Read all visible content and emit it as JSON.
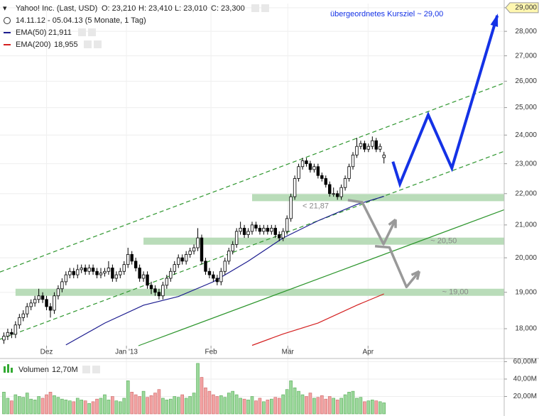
{
  "chart_data": {
    "type": "candlestick",
    "header": {
      "symbol": "Yahoo! Inc. (Last, USD)",
      "open": "O: 23,210",
      "high": "H: 23,410",
      "low": "L: 23,010",
      "close": "C: 23,300",
      "range": "14.11.12 - 05.04.13 (5 Monate, 1 Tag)"
    },
    "annotation": "übergeordnetes Kursziel  ~ 29,00",
    "xlim": [
      -1,
      129
    ],
    "xticks": [
      {
        "value": 11,
        "label": "Dez"
      },
      {
        "value": 31.6,
        "label": "Jan '13"
      },
      {
        "value": 53.4,
        "label": "Feb"
      },
      {
        "value": 73.2,
        "label": "Mär"
      },
      {
        "value": 93.9,
        "label": "Apr"
      }
    ],
    "ylim": [
      17.55,
      29.18
    ],
    "log_scale": true,
    "grid": true,
    "yticks": [
      {
        "value": 18,
        "label": "18,000"
      },
      {
        "value": 19,
        "label": "19,000"
      },
      {
        "value": 20,
        "label": "20,000"
      },
      {
        "value": 21,
        "label": "21,000"
      },
      {
        "value": 22,
        "label": "22,000"
      },
      {
        "value": 23,
        "label": "23,000"
      },
      {
        "value": 24,
        "label": "24,000"
      },
      {
        "value": 25,
        "label": "25,000"
      },
      {
        "value": 26,
        "label": "26,000"
      },
      {
        "value": 27,
        "label": "27,000"
      },
      {
        "value": 28,
        "label": "28,000"
      },
      {
        "value": 29,
        "label": "29,000"
      }
    ],
    "highlight_tick": 11,
    "ohlc": [
      [
        17.7,
        17.9,
        17.6,
        17.8
      ],
      [
        17.8,
        18.0,
        17.7,
        17.9
      ],
      [
        17.9,
        18.0,
        17.75,
        17.85
      ],
      [
        17.85,
        18.2,
        17.75,
        18.1
      ],
      [
        18.1,
        18.4,
        18.0,
        18.3
      ],
      [
        18.3,
        18.5,
        18.2,
        18.4
      ],
      [
        18.4,
        18.7,
        18.3,
        18.6
      ],
      [
        18.6,
        18.8,
        18.5,
        18.7
      ],
      [
        18.7,
        18.9,
        18.6,
        18.8
      ],
      [
        18.8,
        19.1,
        18.7,
        18.9
      ],
      [
        18.9,
        19.0,
        18.7,
        18.8
      ],
      [
        18.8,
        18.9,
        18.5,
        18.6
      ],
      [
        18.6,
        18.7,
        18.3,
        18.5
      ],
      [
        18.5,
        19.0,
        18.4,
        18.9
      ],
      [
        18.9,
        19.2,
        18.8,
        19.1
      ],
      [
        19.1,
        19.4,
        19.0,
        19.3
      ],
      [
        19.3,
        19.6,
        19.2,
        19.5
      ],
      [
        19.5,
        19.7,
        19.4,
        19.6
      ],
      [
        19.6,
        19.7,
        19.4,
        19.5
      ],
      [
        19.5,
        19.8,
        19.4,
        19.65
      ],
      [
        19.65,
        19.8,
        19.55,
        19.7
      ],
      [
        19.7,
        19.8,
        19.5,
        19.6
      ],
      [
        19.6,
        19.8,
        19.5,
        19.7
      ],
      [
        19.7,
        19.8,
        19.5,
        19.6
      ],
      [
        19.6,
        19.7,
        19.4,
        19.5
      ],
      [
        19.5,
        19.7,
        19.4,
        19.55
      ],
      [
        19.55,
        19.7,
        19.45,
        19.6
      ],
      [
        19.6,
        19.9,
        19.5,
        19.7
      ],
      [
        19.7,
        19.8,
        19.3,
        19.4
      ],
      [
        19.4,
        19.6,
        19.3,
        19.5
      ],
      [
        19.5,
        19.7,
        19.4,
        19.6
      ],
      [
        19.6,
        19.9,
        19.5,
        19.8
      ],
      [
        19.8,
        20.3,
        19.7,
        20.1
      ],
      [
        20.1,
        20.2,
        19.8,
        19.9
      ],
      [
        19.9,
        20.0,
        19.6,
        19.7
      ],
      [
        19.7,
        19.8,
        19.3,
        19.4
      ],
      [
        19.4,
        19.6,
        19.3,
        19.5
      ],
      [
        19.5,
        19.6,
        19.1,
        19.2
      ],
      [
        19.2,
        19.3,
        18.95,
        19.1
      ],
      [
        19.1,
        19.2,
        18.9,
        19.0
      ],
      [
        19.0,
        19.1,
        18.8,
        18.9
      ],
      [
        18.9,
        19.3,
        18.8,
        19.2
      ],
      [
        19.2,
        19.5,
        19.1,
        19.4
      ],
      [
        19.4,
        19.7,
        19.3,
        19.6
      ],
      [
        19.6,
        19.9,
        19.5,
        19.8
      ],
      [
        19.8,
        20.1,
        19.7,
        20.0
      ],
      [
        20.0,
        20.1,
        19.8,
        19.9
      ],
      [
        19.9,
        20.2,
        19.8,
        20.1
      ],
      [
        20.1,
        20.3,
        20.0,
        20.2
      ],
      [
        20.2,
        20.4,
        20.1,
        20.3
      ],
      [
        20.3,
        20.9,
        20.2,
        20.6
      ],
      [
        20.6,
        20.7,
        19.8,
        19.9
      ],
      [
        19.9,
        20.0,
        19.5,
        19.6
      ],
      [
        19.6,
        19.7,
        19.4,
        19.5
      ],
      [
        19.5,
        19.6,
        19.3,
        19.4
      ],
      [
        19.4,
        19.5,
        19.2,
        19.3
      ],
      [
        19.3,
        19.7,
        19.2,
        19.6
      ],
      [
        19.6,
        20.0,
        19.5,
        19.9
      ],
      [
        19.9,
        20.3,
        19.8,
        20.2
      ],
      [
        20.2,
        20.5,
        20.1,
        20.4
      ],
      [
        20.4,
        20.9,
        20.3,
        20.8
      ],
      [
        20.8,
        21.1,
        20.7,
        20.9
      ],
      [
        20.9,
        21.0,
        20.6,
        20.7
      ],
      [
        20.7,
        20.9,
        20.6,
        20.8
      ],
      [
        20.8,
        21.1,
        20.7,
        21.0
      ],
      [
        21.0,
        21.1,
        20.8,
        20.9
      ],
      [
        20.9,
        21.0,
        20.7,
        20.8
      ],
      [
        20.8,
        21.0,
        20.7,
        20.9
      ],
      [
        20.9,
        21.0,
        20.7,
        20.8
      ],
      [
        20.8,
        21.0,
        20.7,
        20.9
      ],
      [
        20.9,
        21.0,
        20.6,
        20.7
      ],
      [
        20.7,
        20.8,
        20.5,
        20.6
      ],
      [
        20.6,
        20.9,
        20.5,
        20.8
      ],
      [
        20.8,
        21.3,
        20.7,
        21.2
      ],
      [
        21.2,
        22.0,
        21.1,
        21.9
      ],
      [
        21.9,
        22.6,
        21.8,
        22.5
      ],
      [
        22.5,
        23.0,
        22.4,
        22.9
      ],
      [
        22.9,
        23.2,
        22.8,
        23.1
      ],
      [
        23.1,
        23.2,
        22.9,
        23.0
      ],
      [
        23.0,
        23.1,
        22.7,
        22.8
      ],
      [
        22.8,
        23.0,
        22.7,
        22.9
      ],
      [
        22.9,
        23.0,
        22.5,
        22.6
      ],
      [
        22.6,
        22.7,
        22.4,
        22.5
      ],
      [
        22.5,
        22.6,
        22.2,
        22.3
      ],
      [
        22.3,
        22.4,
        21.9,
        22.0
      ],
      [
        22.0,
        22.2,
        21.9,
        22.0
      ],
      [
        22.0,
        22.1,
        21.8,
        21.9
      ],
      [
        21.9,
        22.3,
        21.8,
        22.2
      ],
      [
        22.2,
        22.6,
        22.1,
        22.5
      ],
      [
        22.5,
        23.0,
        22.4,
        22.9
      ],
      [
        22.9,
        23.4,
        22.8,
        23.3
      ],
      [
        23.3,
        23.9,
        23.2,
        23.6
      ],
      [
        23.6,
        23.8,
        23.5,
        23.7
      ],
      [
        23.7,
        23.8,
        23.4,
        23.5
      ],
      [
        23.5,
        23.7,
        23.4,
        23.6
      ],
      [
        23.6,
        23.95,
        23.5,
        23.8
      ],
      [
        23.8,
        23.9,
        23.4,
        23.5
      ],
      [
        23.5,
        23.7,
        23.4,
        23.6
      ],
      [
        23.21,
        23.41,
        23.01,
        23.3
      ]
    ],
    "series": [
      {
        "name": "EMA(50)",
        "last_label": "21,911",
        "color": "#1c1c8f",
        "x": [
          16,
          26,
          36,
          45,
          54,
          63,
          72,
          81,
          91,
          98
        ],
        "values": [
          17.57,
          18.15,
          18.64,
          18.88,
          19.3,
          19.9,
          20.6,
          21.13,
          21.65,
          21.911
        ]
      },
      {
        "name": "EMA(200)",
        "last_label": "18,955",
        "color": "#d42020",
        "x": [
          64,
          72,
          81,
          91,
          98
        ],
        "values": [
          17.56,
          17.86,
          18.15,
          18.64,
          18.955
        ]
      }
    ],
    "trendlines": [
      {
        "x": [
          -1,
          129
        ],
        "values": [
          19.58,
          25.93
        ],
        "dashed": true,
        "color": "#2e962e"
      },
      {
        "x": [
          -1,
          129
        ],
        "values": [
          17.72,
          23.43
        ],
        "dashed": true,
        "color": "#2e962e"
      },
      {
        "x": [
          34.7,
          129
        ],
        "values": [
          17.55,
          21.48
        ],
        "dashed": false,
        "color": "#2e962e"
      }
    ],
    "bands": [
      {
        "value": 21.87,
        "label": "< 21,87",
        "x0": 64,
        "label_x": 77
      },
      {
        "value": 20.5,
        "label": "~ 20,50",
        "x0": 36,
        "label_x": 110
      },
      {
        "value": 19,
        "label": "~ 19,00",
        "x0": 3,
        "label_x": 113
      }
    ],
    "band_color": "#b9dcb9",
    "projection": {
      "color": "#1432e6",
      "x": [
        100.3,
        102.1,
        109.4,
        115.5,
        127.2
      ],
      "values": [
        23.07,
        22.32,
        24.73,
        22.85,
        28.66
      ]
    },
    "scenarios": {
      "color": "#999999",
      "paths": [
        {
          "x": [
            88.7,
            92.4,
            97.9,
            101.0
          ],
          "values": [
            21.79,
            21.72,
            20.41,
            21.17
          ]
        },
        {
          "x": [
            95.7,
            99.4,
            103.8,
            107.1
          ],
          "values": [
            20.35,
            20.31,
            19.15,
            19.6
          ]
        }
      ]
    },
    "volume": {
      "label": "Volumen",
      "last_label": "12,70M",
      "ylim": [
        0,
        62
      ],
      "yticks": [
        {
          "value": 20,
          "label": "20,00M"
        },
        {
          "value": 40,
          "label": "40,00M"
        },
        {
          "value": 60,
          "label": "60,00M"
        }
      ],
      "up_color": "#9bd89b",
      "down_color": "#f2a3a3",
      "values": [
        25,
        18,
        15,
        22,
        20,
        19,
        24,
        17,
        16,
        20,
        18,
        22,
        25,
        21,
        19,
        17,
        16,
        15,
        14,
        18,
        16,
        15,
        12,
        14,
        17,
        18,
        22,
        16,
        20,
        15,
        14,
        18,
        38,
        25,
        22,
        20,
        26,
        19,
        21,
        24,
        28,
        18,
        16,
        17,
        20,
        19,
        22,
        18,
        20,
        24,
        58,
        42,
        30,
        26,
        22,
        20,
        21,
        19,
        24,
        26,
        22,
        18,
        17,
        16,
        20,
        15,
        18,
        14,
        16,
        17,
        19,
        18,
        22,
        28,
        38,
        30,
        26,
        22,
        20,
        24,
        18,
        19,
        21,
        17,
        20,
        18,
        16,
        18,
        22,
        25,
        26,
        18,
        19,
        14,
        15,
        16,
        15,
        14,
        12.7
      ]
    }
  }
}
